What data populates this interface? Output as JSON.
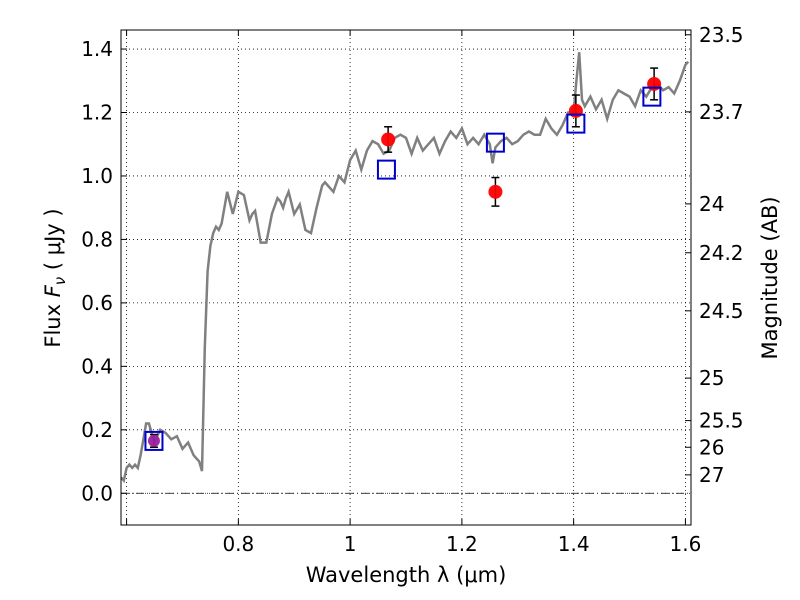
{
  "chart_data": {
    "type": "scatter",
    "xlabel": "Wavelength  λ (μm)",
    "ylabel": "Flux  F_ν  ( μJy )",
    "ylabel_right": "Magnitude (AB)",
    "xlim": [
      0.59,
      1.61
    ],
    "ylim": [
      -0.1,
      1.46
    ],
    "grid": true,
    "x_ticks": [
      0.6,
      0.8,
      1.0,
      1.2,
      1.4,
      1.6
    ],
    "x_tick_labels": [
      "",
      "0.8",
      "1",
      "1.2",
      "1.4",
      "1.6"
    ],
    "y_ticks": [
      0.0,
      0.2,
      0.4,
      0.6,
      0.8,
      1.0,
      1.2,
      1.4
    ],
    "y_tick_labels": [
      "0.0",
      "0.2",
      "0.4",
      "0.6",
      "0.8",
      "1.0",
      "1.2",
      "1.4"
    ],
    "right_ticks": [
      {
        "label": "23.5",
        "flux": 1.445
      },
      {
        "label": "23.7",
        "flux": 1.202
      },
      {
        "label": "24",
        "flux": 0.912
      },
      {
        "label": "24.2",
        "flux": 0.758
      },
      {
        "label": "24.5",
        "flux": 0.575
      },
      {
        "label": "25",
        "flux": 0.363
      },
      {
        "label": "25.5",
        "flux": 0.229
      },
      {
        "label": "26",
        "flux": 0.145
      },
      {
        "label": "27",
        "flux": 0.058
      }
    ],
    "zero_line": 0.0,
    "colors": {
      "model": "#808080",
      "observed": "#ff0000",
      "model_phot": "#0000cc",
      "highlight": "#9b1fa0",
      "errorbar": "#000000"
    },
    "series": [
      {
        "style": "line",
        "x": [
          0.59,
          0.595,
          0.6,
          0.605,
          0.61,
          0.615,
          0.62,
          0.625,
          0.63,
          0.635,
          0.64,
          0.645,
          0.65,
          0.66,
          0.67,
          0.68,
          0.69,
          0.7,
          0.71,
          0.72,
          0.73,
          0.735,
          0.74,
          0.745,
          0.75,
          0.755,
          0.76,
          0.765,
          0.77,
          0.78,
          0.79,
          0.8,
          0.81,
          0.82,
          0.825,
          0.83,
          0.84,
          0.85,
          0.86,
          0.87,
          0.875,
          0.88,
          0.885,
          0.89,
          0.9,
          0.91,
          0.92,
          0.93,
          0.94,
          0.95,
          0.955,
          0.96,
          0.965,
          0.97,
          0.98,
          0.99,
          1.0,
          1.01,
          1.02,
          1.03,
          1.04,
          1.05,
          1.06,
          1.07,
          1.08,
          1.09,
          1.1,
          1.11,
          1.12,
          1.13,
          1.14,
          1.15,
          1.16,
          1.17,
          1.18,
          1.19,
          1.2,
          1.21,
          1.22,
          1.23,
          1.24,
          1.25,
          1.255,
          1.26,
          1.27,
          1.28,
          1.29,
          1.3,
          1.31,
          1.32,
          1.33,
          1.34,
          1.35,
          1.36,
          1.37,
          1.38,
          1.39,
          1.4,
          1.405,
          1.41,
          1.415,
          1.42,
          1.43,
          1.44,
          1.45,
          1.46,
          1.47,
          1.48,
          1.49,
          1.5,
          1.51,
          1.52,
          1.53,
          1.54,
          1.55,
          1.56,
          1.57,
          1.58,
          1.59,
          1.6,
          1.605
        ],
        "y": [
          0.05,
          0.04,
          0.08,
          0.09,
          0.08,
          0.09,
          0.08,
          0.12,
          0.17,
          0.22,
          0.22,
          0.19,
          0.16,
          0.2,
          0.19,
          0.17,
          0.18,
          0.14,
          0.16,
          0.12,
          0.1,
          0.07,
          0.46,
          0.7,
          0.78,
          0.82,
          0.84,
          0.83,
          0.85,
          0.95,
          0.88,
          0.95,
          0.94,
          0.86,
          0.88,
          0.89,
          0.79,
          0.79,
          0.88,
          0.93,
          0.92,
          0.9,
          0.93,
          0.95,
          0.88,
          0.91,
          0.83,
          0.82,
          0.9,
          0.97,
          0.98,
          0.97,
          0.96,
          0.95,
          1.0,
          0.98,
          1.05,
          1.08,
          1.02,
          1.08,
          1.11,
          1.1,
          1.07,
          1.08,
          1.12,
          1.13,
          1.12,
          1.07,
          1.12,
          1.08,
          1.1,
          1.12,
          1.07,
          1.11,
          1.14,
          1.12,
          1.15,
          1.1,
          1.12,
          1.1,
          1.13,
          1.1,
          1.04,
          1.09,
          1.11,
          1.12,
          1.1,
          1.11,
          1.13,
          1.14,
          1.13,
          1.13,
          1.18,
          1.15,
          1.13,
          1.16,
          1.2,
          1.2,
          1.3,
          1.39,
          1.24,
          1.22,
          1.25,
          1.21,
          1.24,
          1.18,
          1.24,
          1.27,
          1.26,
          1.25,
          1.22,
          1.27,
          1.25,
          1.28,
          1.29,
          1.27,
          1.28,
          1.26,
          1.3,
          1.35,
          1.36
        ]
      },
      {
        "style": "markers-square",
        "x": [
          0.649,
          1.065,
          1.26,
          1.404,
          1.54
        ],
        "y": [
          0.165,
          1.02,
          1.105,
          1.165,
          1.25
        ]
      },
      {
        "style": "markers-circle",
        "x": [
          0.649,
          1.068,
          1.26,
          1.404,
          1.544
        ],
        "y": [
          0.165,
          1.115,
          0.95,
          1.205,
          1.29
        ],
        "yerr": [
          0.02,
          0.04,
          0.045,
          0.05,
          0.05
        ]
      }
    ]
  }
}
